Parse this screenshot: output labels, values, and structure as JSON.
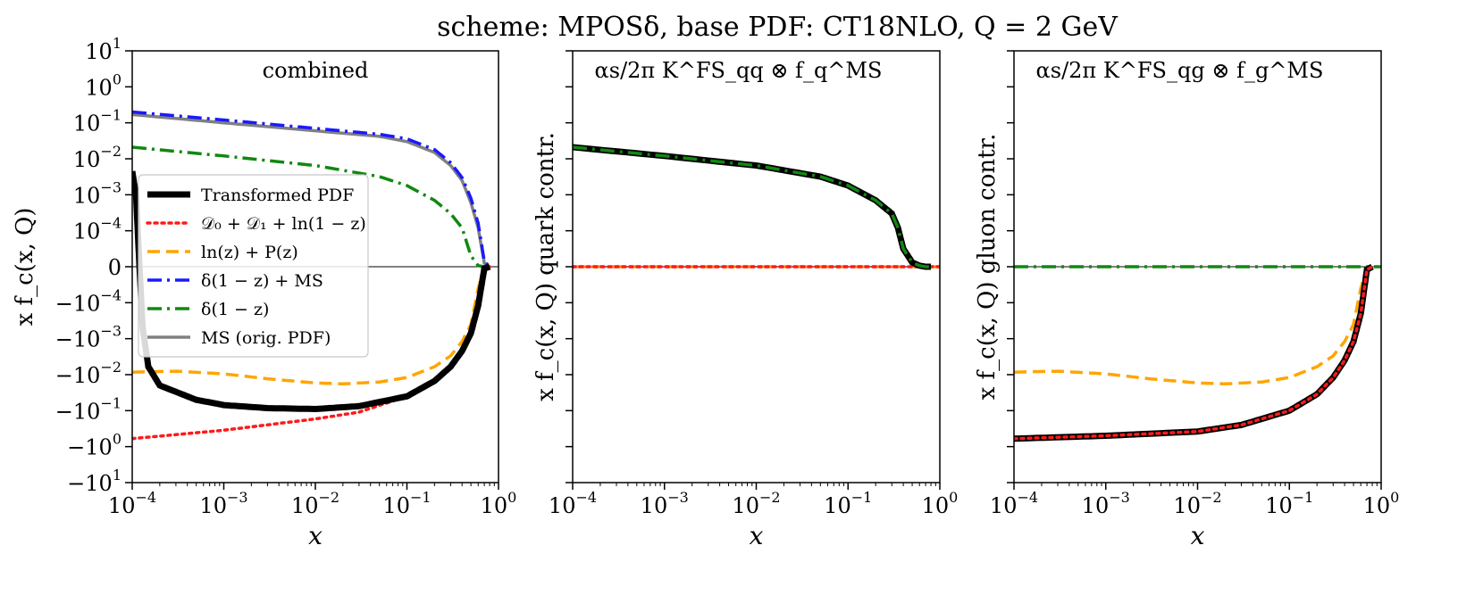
{
  "title": "scheme: MPOSδ, base PDF: CT18NLO, Q = 2 GeV",
  "colors": {
    "transformed": "#000000",
    "d0d1": "#ff1a1a",
    "lnz": "#ffa500",
    "delta_ms": "#1a1aff",
    "delta": "#118811",
    "ms": "#808080",
    "zeroline": "#000000"
  },
  "legend": {
    "entries": [
      {
        "key": "transformed",
        "label": "Transformed PDF"
      },
      {
        "key": "d0d1",
        "label": "𝒟₀ + 𝒟₁ + ln(1 − z)"
      },
      {
        "key": "lnz",
        "label": "ln(z) + P(z)"
      },
      {
        "key": "delta_ms",
        "label": "δ(1 − z) + MS"
      },
      {
        "key": "delta",
        "label": "δ(1 − z)"
      },
      {
        "key": "ms",
        "label": "MS (orig. PDF)"
      }
    ]
  },
  "chart_data": [
    {
      "type": "line",
      "panel": "combined",
      "annotation": "combined",
      "xlabel": "x",
      "ylabel": "x f_c(x, Q)",
      "xscale": "log",
      "xlim": [
        0.0001,
        1.0
      ],
      "yscale": "symlog",
      "ylim": [
        -10,
        10
      ],
      "xticks": [
        {
          "base": "10",
          "exp": "−4"
        },
        {
          "base": "10",
          "exp": "−3"
        },
        {
          "base": "10",
          "exp": "−2"
        },
        {
          "base": "10",
          "exp": "−1"
        },
        {
          "base": "10",
          "exp": "0"
        }
      ],
      "yticks": [
        {
          "sign": "",
          "base": "10",
          "exp": "1"
        },
        {
          "sign": "",
          "base": "10",
          "exp": "0"
        },
        {
          "sign": "",
          "base": "10",
          "exp": "−1"
        },
        {
          "sign": "",
          "base": "10",
          "exp": "−2"
        },
        {
          "sign": "",
          "base": "10",
          "exp": "−3"
        },
        {
          "sign": "",
          "base": "10",
          "exp": "−4"
        },
        {
          "sign": "",
          "base": "0",
          "exp": ""
        },
        {
          "sign": "−",
          "base": "10",
          "exp": "−4"
        },
        {
          "sign": "−",
          "base": "10",
          "exp": "−3"
        },
        {
          "sign": "−",
          "base": "10",
          "exp": "−2"
        },
        {
          "sign": "−",
          "base": "10",
          "exp": "−1"
        },
        {
          "sign": "−",
          "base": "10",
          "exp": "0"
        },
        {
          "sign": "−",
          "base": "10",
          "exp": "1"
        }
      ],
      "series": [
        {
          "key": "ms",
          "name": "MS (orig. PDF)",
          "x": [
            0.0001,
            0.001,
            0.01,
            0.05,
            0.1,
            0.2,
            0.3,
            0.4,
            0.5,
            0.6,
            0.7,
            0.8
          ],
          "y": [
            0.17,
            0.1,
            0.06,
            0.042,
            0.03,
            0.015,
            0.0065,
            0.0025,
            0.0006,
            0.00012,
            1e-05,
            0
          ]
        },
        {
          "key": "delta_ms",
          "name": "δ(1 − z) + MS",
          "x": [
            0.0001,
            0.001,
            0.01,
            0.05,
            0.1,
            0.2,
            0.3,
            0.4,
            0.5,
            0.6,
            0.7,
            0.8
          ],
          "y": [
            0.2,
            0.12,
            0.07,
            0.048,
            0.036,
            0.018,
            0.0078,
            0.003,
            0.0008,
            0.00016,
            1.5e-05,
            0
          ]
        },
        {
          "key": "delta",
          "name": "δ(1 − z)",
          "x": [
            0.0001,
            0.001,
            0.01,
            0.05,
            0.1,
            0.2,
            0.3,
            0.4,
            0.5,
            0.6,
            0.7
          ],
          "y": [
            0.021,
            0.012,
            0.0065,
            0.0032,
            0.0018,
            0.0007,
            0.0003,
            0.00012,
            3e-05,
            3e-06,
            0
          ]
        },
        {
          "key": "lnz",
          "name": "ln(z) + P(z)",
          "x": [
            0.0001,
            0.0003,
            0.001,
            0.003,
            0.01,
            0.02,
            0.05,
            0.1,
            0.2,
            0.3,
            0.4,
            0.5,
            0.6,
            0.7
          ],
          "y": [
            -0.0085,
            -0.008,
            -0.0095,
            -0.013,
            -0.017,
            -0.018,
            -0.016,
            -0.012,
            -0.006,
            -0.003,
            -0.0012,
            -0.0004,
            -6e-05,
            0
          ]
        },
        {
          "key": "d0d1",
          "name": "𝒟₀ + 𝒟₁ + ln(1 − z)",
          "x": [
            0.0001,
            0.001,
            0.01,
            0.03,
            0.1,
            0.2,
            0.3,
            0.4,
            0.5,
            0.6,
            0.7,
            0.8
          ],
          "y": [
            -0.6,
            -0.35,
            -0.17,
            -0.11,
            -0.04,
            -0.015,
            -0.006,
            -0.0022,
            -0.0007,
            -0.00012,
            -5e-06,
            0
          ]
        },
        {
          "key": "transformed",
          "name": "Transformed PDF",
          "x": [
            0.0001,
            0.00011,
            0.00012,
            0.00013,
            0.00015,
            0.0002,
            0.0005,
            0.001,
            0.003,
            0.01,
            0.03,
            0.1,
            0.2,
            0.3,
            0.4,
            0.5,
            0.6,
            0.7,
            0.8
          ],
          "y": [
            0.0045,
            0.001,
            1e-06,
            -0.0005,
            -0.006,
            -0.02,
            -0.05,
            -0.07,
            -0.085,
            -0.09,
            -0.075,
            -0.04,
            -0.015,
            -0.006,
            -0.0022,
            -0.0007,
            -0.00012,
            -5e-06,
            0
          ]
        }
      ]
    },
    {
      "type": "line",
      "panel": "quark",
      "annotation": "αs/2π K^FS_qq ⊗ f_q^MS",
      "xlabel": "x",
      "ylabel": "x f_c(x, Q)  quark contr.",
      "xscale": "log",
      "xlim": [
        0.0001,
        1.0
      ],
      "yscale": "symlog",
      "ylim": [
        -10,
        10
      ],
      "xticks": [
        {
          "base": "10",
          "exp": "−4"
        },
        {
          "base": "10",
          "exp": "−3"
        },
        {
          "base": "10",
          "exp": "−2"
        },
        {
          "base": "10",
          "exp": "−1"
        },
        {
          "base": "10",
          "exp": "0"
        }
      ],
      "series": [
        {
          "key": "lnz",
          "name": "ln(z) + P(z)",
          "x": [
            0.0001,
            1.0
          ],
          "y": [
            0,
            0
          ]
        },
        {
          "key": "d0d1",
          "name": "𝒟₀ + 𝒟₁ + ln(1 − z)",
          "x": [
            0.0001,
            1.0
          ],
          "y": [
            0,
            0
          ]
        },
        {
          "key": "transformed",
          "name": "Transformed PDF",
          "x": [
            0.0001,
            0.001,
            0.01,
            0.05,
            0.1,
            0.2,
            0.3,
            0.35,
            0.4,
            0.5,
            0.6,
            0.7,
            0.8
          ],
          "y": [
            0.021,
            0.012,
            0.0065,
            0.0032,
            0.0018,
            0.0007,
            0.0003,
            0.00012,
            5e-05,
            1.2e-05,
            3e-06,
            0,
            0
          ]
        },
        {
          "key": "delta",
          "name": "δ(1 − z)",
          "x": [
            0.0001,
            0.001,
            0.01,
            0.05,
            0.1,
            0.2,
            0.3,
            0.35,
            0.4,
            0.5,
            0.6,
            0.7,
            0.8
          ],
          "y": [
            0.021,
            0.012,
            0.0065,
            0.0032,
            0.0018,
            0.0007,
            0.0003,
            0.00012,
            5e-05,
            1.2e-05,
            3e-06,
            0,
            0
          ]
        }
      ]
    },
    {
      "type": "line",
      "panel": "gluon",
      "annotation": "αs/2π K^FS_qg ⊗ f_g^MS",
      "xlabel": "x",
      "ylabel": "x f_c(x, Q)  gluon contr.",
      "xscale": "log",
      "xlim": [
        0.0001,
        1.0
      ],
      "yscale": "symlog",
      "ylim": [
        -10,
        10
      ],
      "xticks": [
        {
          "base": "10",
          "exp": "−4"
        },
        {
          "base": "10",
          "exp": "−3"
        },
        {
          "base": "10",
          "exp": "−2"
        },
        {
          "base": "10",
          "exp": "−1"
        },
        {
          "base": "10",
          "exp": "0"
        }
      ],
      "series": [
        {
          "key": "delta",
          "name": "δ(1 − z)",
          "x": [
            0.0001,
            1.0
          ],
          "y": [
            0,
            0
          ]
        },
        {
          "key": "lnz",
          "name": "ln(z) + P(z)",
          "x": [
            0.0001,
            0.0003,
            0.001,
            0.003,
            0.01,
            0.02,
            0.05,
            0.1,
            0.2,
            0.3,
            0.4,
            0.5,
            0.6,
            0.7
          ],
          "y": [
            -0.0085,
            -0.008,
            -0.0095,
            -0.013,
            -0.017,
            -0.018,
            -0.016,
            -0.012,
            -0.006,
            -0.003,
            -0.0012,
            -0.0004,
            -6e-05,
            0
          ]
        },
        {
          "key": "transformed",
          "name": "Transformed PDF",
          "x": [
            0.0001,
            0.001,
            0.01,
            0.03,
            0.1,
            0.2,
            0.3,
            0.4,
            0.5,
            0.6,
            0.7,
            0.8
          ],
          "y": [
            -0.6,
            -0.5,
            -0.38,
            -0.25,
            -0.1,
            -0.035,
            -0.012,
            -0.004,
            -0.0012,
            -0.0002,
            -8e-06,
            0
          ]
        },
        {
          "key": "d0d1",
          "name": "𝒟₀ + 𝒟₁ + ln(1 − z)",
          "x": [
            0.0001,
            0.001,
            0.01,
            0.03,
            0.1,
            0.2,
            0.3,
            0.4,
            0.5,
            0.6,
            0.7,
            0.8
          ],
          "y": [
            -0.6,
            -0.5,
            -0.38,
            -0.25,
            -0.1,
            -0.035,
            -0.012,
            -0.004,
            -0.0012,
            -0.0002,
            -8e-06,
            0
          ]
        }
      ]
    }
  ]
}
